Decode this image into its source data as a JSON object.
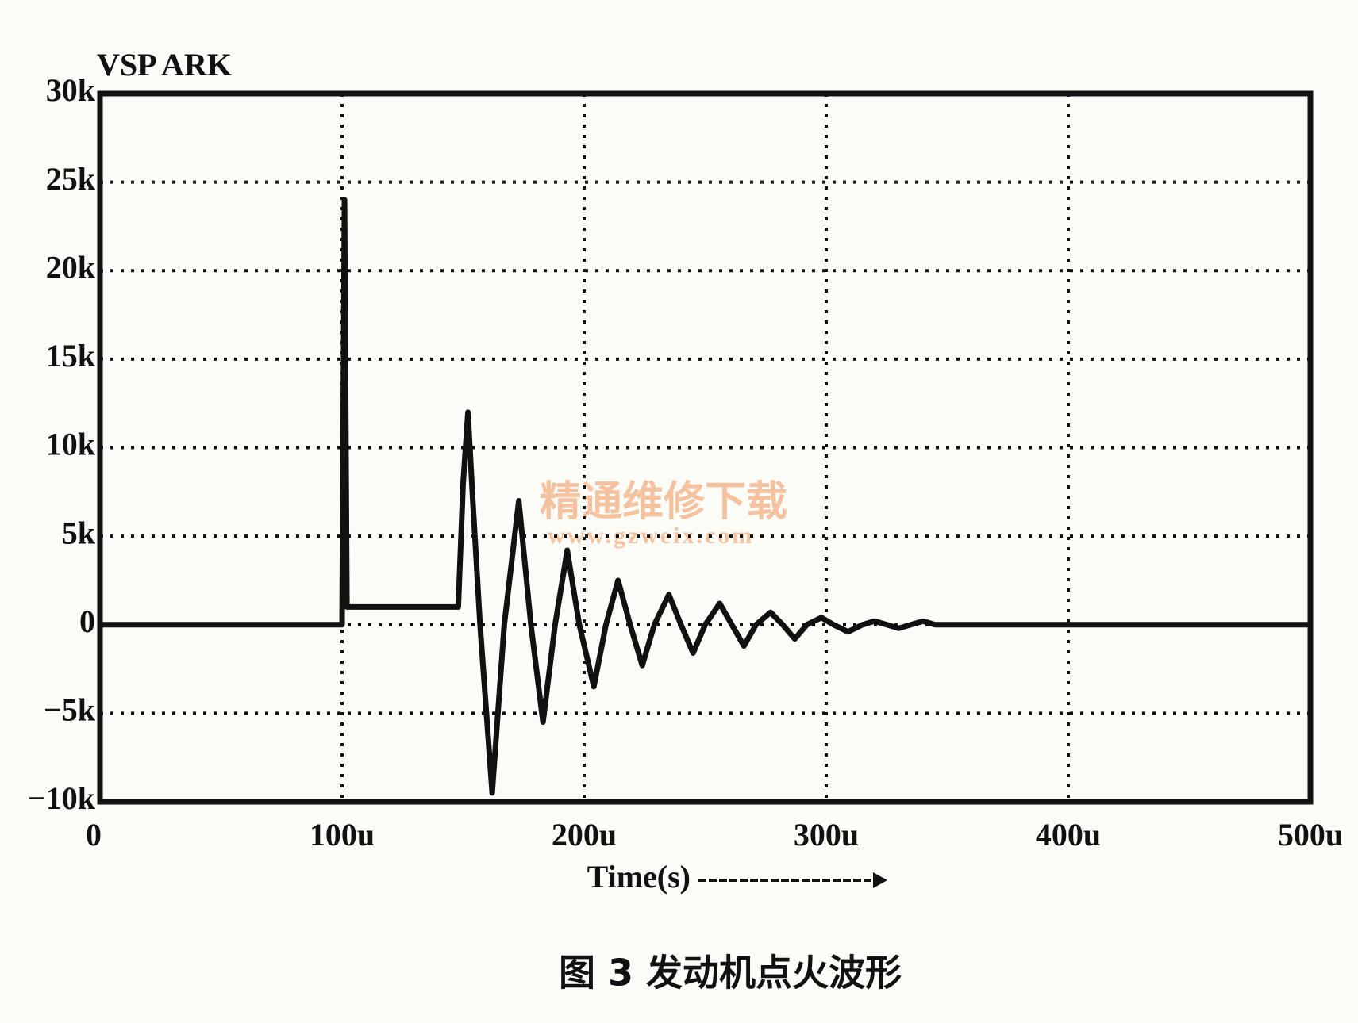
{
  "chart_data": {
    "type": "line",
    "y_label": "VSP ARK",
    "x_label": "Time(s)",
    "caption": "图 3  发动机点火波形",
    "watermark": "精通维修下载",
    "watermark_url": "www.gzweix.com",
    "xlim": [
      0,
      0.0005
    ],
    "ylim": [
      -10000,
      30000
    ],
    "xticks": [
      0,
      {
        "value": 0.0001,
        "label": "100u"
      },
      {
        "value": 0.0002,
        "label": "200u"
      },
      {
        "value": 0.0003,
        "label": "300u"
      },
      {
        "value": 0.0004,
        "label": "400u"
      },
      {
        "value": 0.0005,
        "label": "500u"
      }
    ],
    "yticks": [
      {
        "value": 30000,
        "label": "30k"
      },
      {
        "value": 25000,
        "label": "25k"
      },
      {
        "value": 20000,
        "label": "20k"
      },
      {
        "value": 15000,
        "label": "15k"
      },
      {
        "value": 10000,
        "label": "10k"
      },
      {
        "value": 5000,
        "label": "5k"
      },
      0,
      {
        "value": -5000,
        "label": "−5k"
      },
      {
        "value": -10000,
        "label": "−10k"
      }
    ],
    "grid": true,
    "series": [
      {
        "color": "#111111",
        "x": [
          0,
          0.0001,
          0.000101,
          0.000102,
          0.000148,
          0.00015,
          0.000152,
          0.000154,
          0.000157,
          0.000162,
          0.000167,
          0.000173,
          0.000178,
          0.000183,
          0.000188,
          0.000193,
          0.000198,
          0.000204,
          0.000209,
          0.000214,
          0.000219,
          0.000224,
          0.000229,
          0.000235,
          0.00024,
          0.000245,
          0.00025,
          0.000256,
          0.000261,
          0.000266,
          0.000271,
          0.000277,
          0.000282,
          0.000287,
          0.000292,
          0.000298,
          0.000303,
          0.000309,
          0.000315,
          0.00032,
          0.00033,
          0.00034,
          0.000345,
          0.0005
        ],
        "values": [
          0,
          0,
          24000,
          1000,
          1000,
          8000,
          12000,
          7000,
          0,
          -9500,
          0,
          7000,
          0,
          -5500,
          0,
          4200,
          0,
          -3500,
          0,
          2500,
          0,
          -2300,
          0,
          1700,
          0,
          -1600,
          0,
          1200,
          0,
          -1200,
          0,
          700,
          0,
          -800,
          0,
          400,
          0,
          -400,
          0,
          200,
          -200,
          200,
          0,
          0
        ]
      }
    ]
  }
}
